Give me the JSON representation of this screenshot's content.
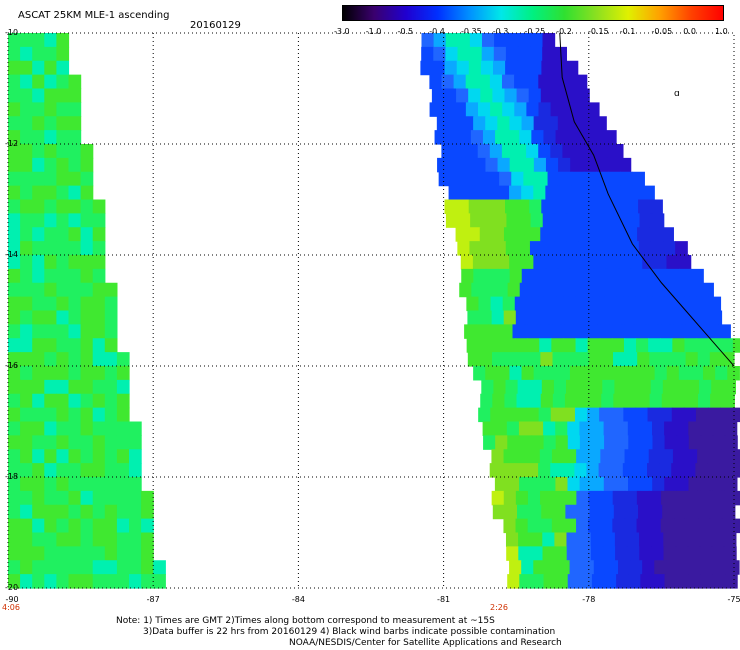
{
  "header": {
    "title": "ASCAT 25KM MLE-1 ascending",
    "date": "20160129"
  },
  "colorbar": {
    "labels": [
      "-3.0",
      "-1.0",
      "-0.5",
      "-0.4",
      "-0.35",
      "-0.3",
      "-0.25",
      "-0.2",
      "-0.15",
      "-0.1",
      "-0.05",
      "0.0",
      "1.0"
    ],
    "stops": [
      "#000000",
      "#3a006e",
      "#2000d0",
      "#0030ff",
      "#0090ff",
      "#00e8e8",
      "#00f080",
      "#30e030",
      "#8ce020",
      "#e0f000",
      "#ffa000",
      "#ff4000",
      "#ff0000"
    ]
  },
  "map": {
    "lat_labels": [
      "-10",
      "-12",
      "-14",
      "-16",
      "-18",
      "-20"
    ],
    "lon_labels": [
      "-90",
      "-87",
      "-84",
      "-81",
      "-78",
      "-75"
    ],
    "time_labels": [
      "4:06",
      "2:26"
    ]
  },
  "notes": {
    "line1": "Note: 1) Times are GMT 2)Times along bottom correspond to measurement at ~15S",
    "line2": "3)Data buffer is 22 hrs from 20160129 4) Black wind barbs indicate possible contamination",
    "line3": "NOAA/NESDIS/Center for Satellite Applications and Research"
  }
}
